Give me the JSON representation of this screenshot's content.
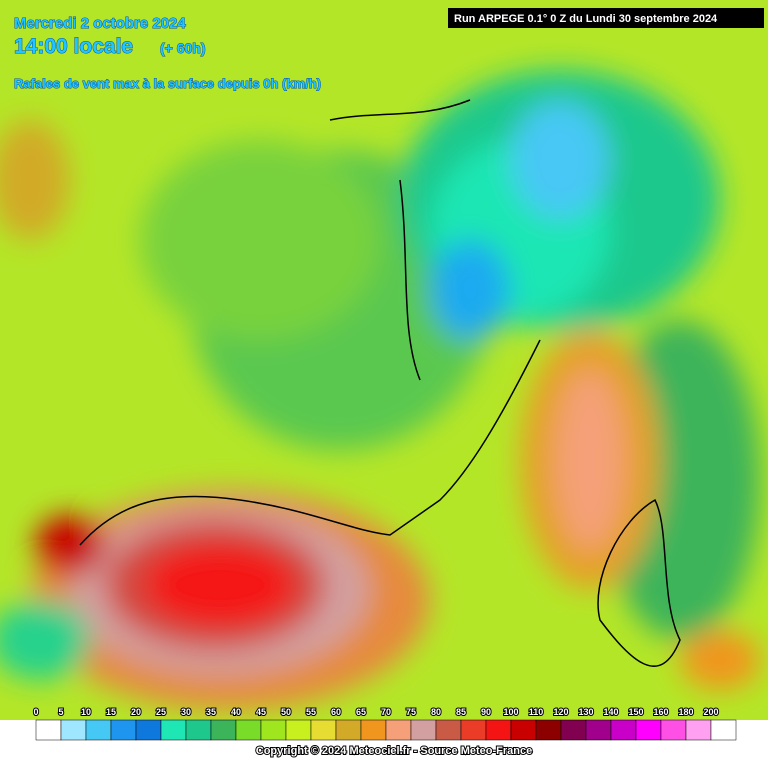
{
  "header": {
    "date": "Mercredi 2 octobre 2024",
    "time": "14:00 locale",
    "lead": "(+ 60h)",
    "parameter": "Rafales de vent max à la surface depuis 0h (km/h)",
    "run": "Run ARPEGE 0.1° 0 Z du Lundi 30 septembre 2024"
  },
  "legend": {
    "ticks": [
      0,
      5,
      10,
      15,
      20,
      25,
      30,
      35,
      40,
      45,
      50,
      55,
      60,
      65,
      70,
      75,
      80,
      85,
      90,
      100,
      110,
      120,
      130,
      140,
      150,
      160,
      180,
      200
    ],
    "colors": [
      "#ffffff",
      "#9ee7ff",
      "#46c8f5",
      "#1e96f0",
      "#0f78dc",
      "#1ee6b4",
      "#1ec88c",
      "#3cb45a",
      "#78dc28",
      "#a0e61e",
      "#c8f01e",
      "#e6dc32",
      "#d2aa28",
      "#f0961e",
      "#f5a078",
      "#d2a0a0",
      "#c85a46",
      "#eb3c28",
      "#f51414",
      "#c80000",
      "#8c0000",
      "#820050",
      "#a0008c",
      "#c800c8",
      "#ff00ff",
      "#ff50e6",
      "#ffa0f0",
      "#ffffff"
    ]
  },
  "footer": {
    "copyright": "Copyright © 2024 Meteociel.fr - Source Meteo-France"
  }
}
